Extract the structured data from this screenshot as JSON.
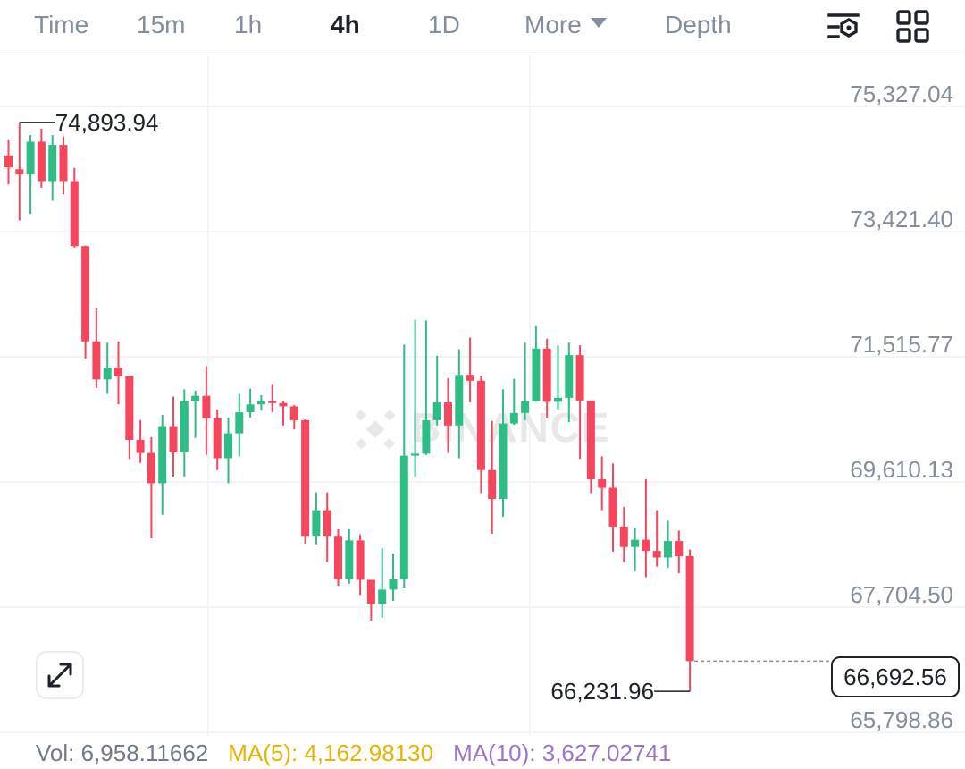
{
  "toolbar": {
    "tabs": [
      {
        "label": "Time"
      },
      {
        "label": "15m"
      },
      {
        "label": "1h"
      },
      {
        "label": "4h",
        "active": true
      },
      {
        "label": "1D"
      },
      {
        "label": "More"
      },
      {
        "label": "Depth"
      }
    ],
    "icons": [
      "indicator-settings-icon",
      "layout-grid-icon"
    ]
  },
  "watermark": "BINANCE",
  "colors": {
    "up": "#2ebd85",
    "down": "#f6465d",
    "grid": "#f0f1f3",
    "axis_text": "#848e9c"
  },
  "chart_data": {
    "type": "candlestick",
    "ylim": [
      65418,
      75708
    ],
    "y_ticks": [
      "75,327.04",
      "73,421.40",
      "71,515.77",
      "69,610.13",
      "67,704.50",
      "65,798.86"
    ],
    "y_tick_values": [
      75327.04,
      73421.4,
      71515.77,
      69610.13,
      67704.5,
      65798.86
    ],
    "high_annotation": {
      "label": "74,893.94",
      "value": 74893.94,
      "index": 1
    },
    "low_annotation": {
      "label": "66,231.96",
      "value": 66231.96,
      "index": 62
    },
    "last_price": {
      "label": "66,692.56",
      "value": 66692.56
    },
    "candles": [
      [
        74390,
        74210,
        74620,
        73950
      ],
      [
        74180,
        74100,
        74894,
        73400
      ],
      [
        74100,
        74600,
        74700,
        73500
      ],
      [
        74600,
        74000,
        74800,
        73900
      ],
      [
        74000,
        74550,
        74700,
        73700
      ],
      [
        74550,
        74000,
        74680,
        73800
      ],
      [
        74000,
        73010,
        74200,
        72990
      ],
      [
        73010,
        71560,
        73020,
        71300
      ],
      [
        71560,
        70980,
        72060,
        70850
      ],
      [
        70980,
        71160,
        71540,
        70760
      ],
      [
        71160,
        71030,
        71560,
        70600
      ],
      [
        71030,
        70060,
        71040,
        69770
      ],
      [
        70060,
        69860,
        70360,
        69710
      ],
      [
        69860,
        69400,
        70100,
        68560
      ],
      [
        69400,
        70270,
        70440,
        68920
      ],
      [
        70270,
        69870,
        70720,
        69500
      ],
      [
        69870,
        70650,
        70830,
        69500
      ],
      [
        70650,
        70730,
        70810,
        70090
      ],
      [
        70730,
        70390,
        71180,
        69830
      ],
      [
        70390,
        69780,
        70520,
        69600
      ],
      [
        69780,
        70160,
        70400,
        69400
      ],
      [
        70160,
        70480,
        70760,
        69810
      ],
      [
        70480,
        70600,
        70840,
        70400
      ],
      [
        70600,
        70650,
        70740,
        70510
      ],
      [
        70650,
        70620,
        70910,
        70480
      ],
      [
        70620,
        70570,
        70650,
        70280
      ],
      [
        70570,
        70360,
        70590,
        70220
      ],
      [
        70360,
        68600,
        70370,
        68480
      ],
      [
        68600,
        68990,
        69260,
        68470
      ],
      [
        68990,
        68600,
        69260,
        68200
      ],
      [
        68600,
        67940,
        68700,
        67840
      ],
      [
        67940,
        68530,
        68700,
        67870
      ],
      [
        68530,
        67930,
        68620,
        67700
      ],
      [
        67930,
        67560,
        67920,
        67310
      ],
      [
        67560,
        67780,
        68410,
        67350
      ],
      [
        67780,
        67940,
        68330,
        67610
      ],
      [
        67940,
        69820,
        71510,
        67800
      ],
      [
        69820,
        69850,
        71890,
        69500
      ],
      [
        69850,
        70360,
        71880,
        69830
      ],
      [
        70360,
        70630,
        71340,
        70280
      ],
      [
        70630,
        70280,
        71000,
        69860
      ],
      [
        70280,
        71050,
        71440,
        69780
      ],
      [
        71050,
        70960,
        71620,
        70630
      ],
      [
        70960,
        69600,
        71040,
        69250
      ],
      [
        69600,
        69160,
        70350,
        68630
      ],
      [
        69160,
        70310,
        70830,
        68890
      ],
      [
        70310,
        70470,
        70990,
        70290
      ],
      [
        70470,
        70650,
        71540,
        70360
      ],
      [
        70650,
        71450,
        71790,
        70640
      ],
      [
        71450,
        70640,
        71600,
        70390
      ],
      [
        70640,
        70700,
        71500,
        70520
      ],
      [
        70700,
        71350,
        71540,
        70330
      ],
      [
        71350,
        70660,
        71500,
        69770
      ],
      [
        70660,
        69460,
        70650,
        69250
      ],
      [
        69460,
        69330,
        69810,
        68990
      ],
      [
        69330,
        68740,
        69700,
        68360
      ],
      [
        68740,
        68430,
        69040,
        68200
      ],
      [
        68430,
        68540,
        68720,
        68060
      ],
      [
        68540,
        68370,
        69460,
        67970
      ],
      [
        68370,
        68270,
        68990,
        68130
      ],
      [
        68270,
        68520,
        68830,
        68110
      ],
      [
        68520,
        68290,
        68680,
        68030
      ],
      [
        68290,
        66693,
        68390,
        66232
      ]
    ]
  },
  "indicators": {
    "vol": "Vol: 6,958.11662",
    "ma5": "MA(5): 4,162.98130",
    "ma10": "MA(10): 3,627.02741"
  }
}
